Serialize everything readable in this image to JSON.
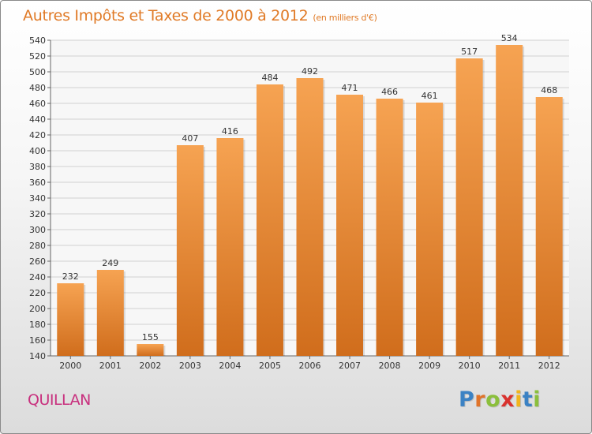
{
  "header": {
    "title": "Autres Impôts et Taxes de 2000 à 2012",
    "subtitle": "(en milliers d'€)"
  },
  "footer": {
    "city": "QUILLAN",
    "logo_letters": [
      "P",
      "r",
      "o",
      "x",
      "i",
      "t",
      "i"
    ],
    "logo_colors": [
      "#3b82c4",
      "#e0742a",
      "#8bbf3c",
      "#d9322e",
      "#f2b51c",
      "#3b82c4",
      "#8bbf3c"
    ]
  },
  "chart_data": {
    "type": "bar",
    "title": "Autres Impôts et Taxes de 2000 à 2012",
    "subtitle": "(en milliers d'€)",
    "xlabel": "",
    "ylabel": "",
    "categories": [
      "2000",
      "2001",
      "2002",
      "2003",
      "2004",
      "2005",
      "2006",
      "2007",
      "2008",
      "2009",
      "2010",
      "2011",
      "2012"
    ],
    "values": [
      232,
      249,
      155,
      407,
      416,
      484,
      492,
      471,
      466,
      461,
      517,
      534,
      468
    ],
    "ylim": [
      140,
      540
    ],
    "ytick_step": 20,
    "grid": true,
    "bar_color_top": "#f6a352",
    "bar_color_bottom": "#d06d1c",
    "grid_color": "#d0d0d0"
  }
}
